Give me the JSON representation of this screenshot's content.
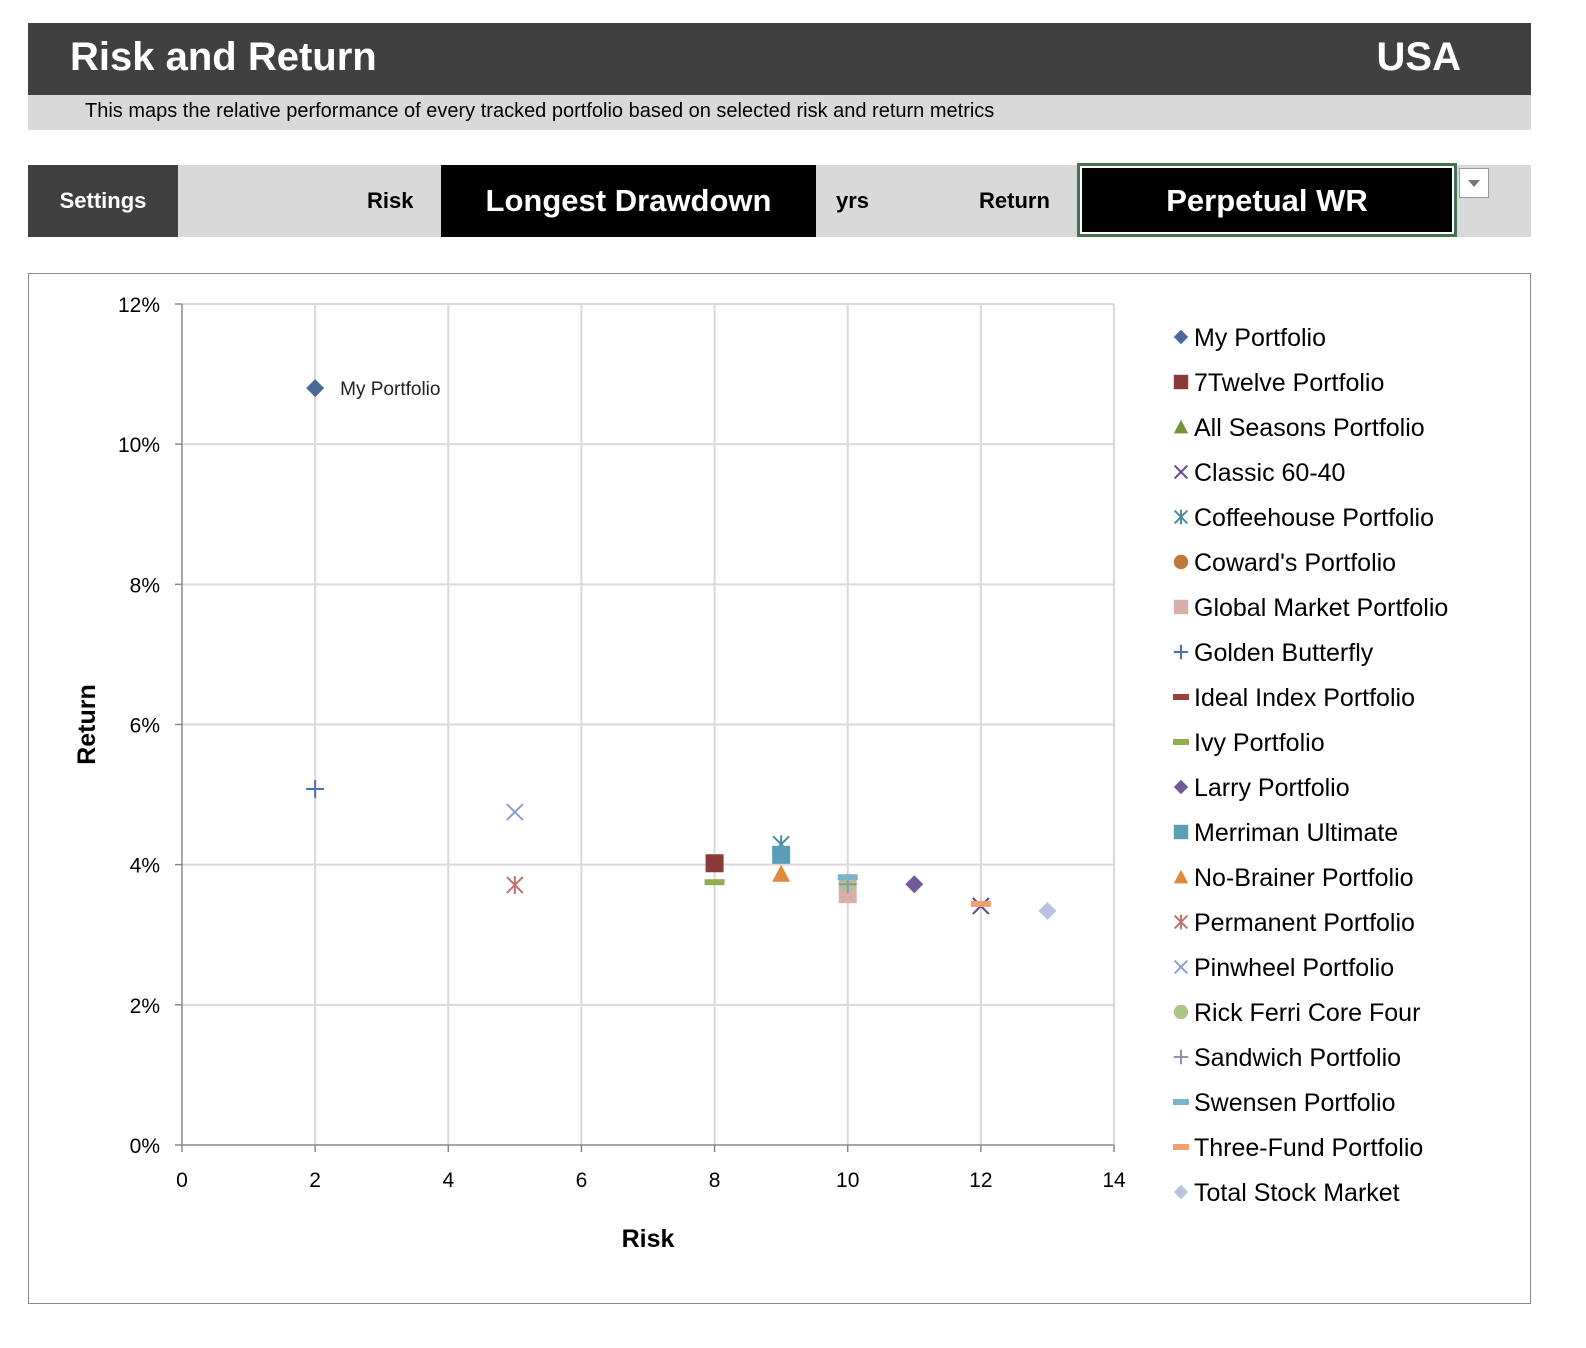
{
  "header": {
    "title": "Risk and Return",
    "country": "USA",
    "subtitle": "This maps the relative performance of every tracked portfolio based on selected risk and return metrics"
  },
  "settings": {
    "label": "Settings",
    "risk_label": "Risk",
    "risk_value": "Longest Drawdown",
    "risk_unit": "yrs",
    "return_label": "Return",
    "return_value": "Perpetual WR"
  },
  "chart_data": {
    "type": "scatter",
    "xlabel": "Risk",
    "ylabel": "Return",
    "xlim": [
      0,
      14
    ],
    "ylim": [
      0,
      12
    ],
    "xticks": [
      "0",
      "2",
      "4",
      "6",
      "8",
      "10",
      "12",
      "14"
    ],
    "yticks": [
      "0%",
      "2%",
      "4%",
      "6%",
      "8%",
      "10%",
      "12%"
    ],
    "grid": true,
    "legend": "right",
    "annotation": "My Portfolio",
    "series": [
      {
        "name": "My Portfolio",
        "x": 2,
        "y": 10.8,
        "marker": "diamond",
        "color": "#4A6898"
      },
      {
        "name": "7Twelve Portfolio",
        "x": 8,
        "y": 4.02,
        "marker": "square",
        "color": "#8B3A3A"
      },
      {
        "name": "All Seasons Portfolio",
        "x": null,
        "y": null,
        "marker": "triangle",
        "color": "#77933C"
      },
      {
        "name": "Classic 60-40",
        "x": 12,
        "y": 3.41,
        "marker": "x",
        "color": "#5F4B8B"
      },
      {
        "name": "Coffeehouse Portfolio",
        "x": 9,
        "y": 4.29,
        "marker": "asterisk",
        "color": "#4A8BA3"
      },
      {
        "name": "Coward's Portfolio",
        "x": 10,
        "y": 3.72,
        "marker": "circle",
        "color": "#C0793A"
      },
      {
        "name": "Global Market Portfolio",
        "x": 10,
        "y": 3.58,
        "marker": "square",
        "color": "#D9AFAE"
      },
      {
        "name": "Golden Butterfly",
        "x": 2,
        "y": 5.08,
        "marker": "plus",
        "color": "#4A72B0"
      },
      {
        "name": "Ideal Index Portfolio",
        "x": null,
        "y": null,
        "marker": "dash",
        "color": "#A0403E"
      },
      {
        "name": "Ivy Portfolio",
        "x": 8,
        "y": 3.75,
        "marker": "dash",
        "color": "#8FAE4E"
      },
      {
        "name": "Larry Portfolio",
        "x": 11,
        "y": 3.72,
        "marker": "diamond",
        "color": "#725A9A"
      },
      {
        "name": "Merriman Ultimate",
        "x": 9,
        "y": 4.14,
        "marker": "square",
        "color": "#5A9EB8"
      },
      {
        "name": "No-Brainer Portfolio",
        "x": 9,
        "y": 3.87,
        "marker": "triangle",
        "color": "#E08A3E"
      },
      {
        "name": "Permanent Portfolio",
        "x": 5,
        "y": 3.71,
        "marker": "asterisk",
        "color": "#C0726E"
      },
      {
        "name": "Pinwheel Portfolio",
        "x": 5,
        "y": 4.75,
        "marker": "x",
        "color": "#8A9FD0"
      },
      {
        "name": "Rick Ferri Core Four",
        "x": 10,
        "y": 3.74,
        "marker": "circle",
        "color": "#ABC685"
      },
      {
        "name": "Sandwich Portfolio",
        "x": 10,
        "y": 3.72,
        "marker": "plus",
        "color": "#9A8CB5"
      },
      {
        "name": "Swensen Portfolio",
        "x": 10,
        "y": 3.82,
        "marker": "dash",
        "color": "#7DB4CC"
      },
      {
        "name": "Three-Fund Portfolio",
        "x": 12,
        "y": 3.44,
        "marker": "dash",
        "color": "#F0A070"
      },
      {
        "name": "Total Stock Market",
        "x": 13,
        "y": 3.34,
        "marker": "diamond",
        "color": "#B8C4DE"
      }
    ]
  }
}
